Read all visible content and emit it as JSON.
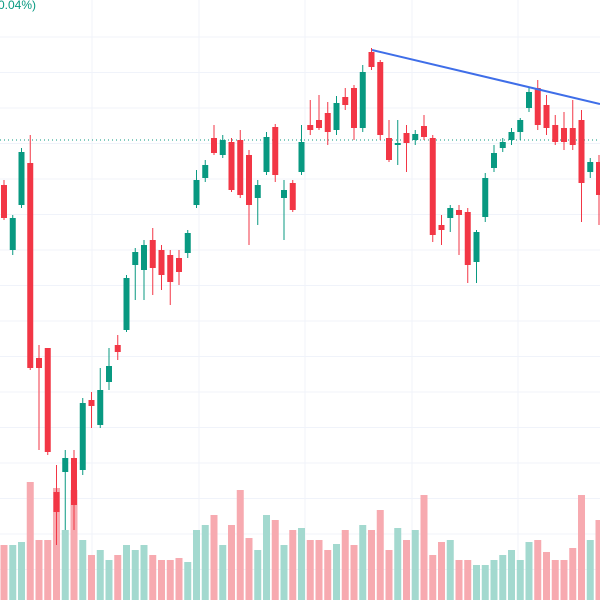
{
  "chart_data": {
    "type": "candlestick",
    "header_text": "0.04%)",
    "up_color": "#089981",
    "down_color": "#f23645",
    "volume_up_color": "#a3d9cf",
    "volume_down_color": "#f7aab0",
    "ylim": [
      0,
      600
    ],
    "y2lim": [
      0,
      600
    ],
    "grid": true,
    "open": [
      415,
      350,
      395,
      437,
      242,
      252,
      108,
      128,
      142,
      130,
      200,
      175,
      218,
      255,
      270,
      335,
      330,
      360,
      350,
      345,
      342,
      347,
      395,
      422,
      462,
      445,
      458,
      460,
      445,
      402,
      428,
      473,
      402,
      417,
      428,
      475,
      480,
      487,
      470,
      503,
      512,
      472,
      548,
      538,
      462,
      455,
      467,
      460,
      474,
      462,
      375,
      382,
      390,
      388,
      338,
      383,
      432,
      452,
      460,
      468,
      492,
      512,
      495,
      475,
      472,
      472,
      480,
      428,
      438
    ],
    "high": [
      420,
      385,
      452,
      465,
      255,
      252,
      135,
      150,
      150,
      202,
      208,
      232,
      252,
      265,
      325,
      352,
      360,
      372,
      355,
      350,
      350,
      370,
      430,
      440,
      475,
      465,
      462,
      470,
      450,
      420,
      468,
      476,
      420,
      420,
      475,
      500,
      505,
      498,
      504,
      512,
      515,
      535,
      552,
      540,
      480,
      480,
      475,
      470,
      485,
      465,
      385,
      395,
      395,
      392,
      370,
      427,
      455,
      462,
      472,
      482,
      512,
      520,
      505,
      485,
      488,
      500,
      490,
      442,
      445
    ],
    "low": [
      380,
      345,
      392,
      230,
      150,
      145,
      55,
      70,
      70,
      125,
      172,
      172,
      210,
      240,
      268,
      300,
      300,
      305,
      310,
      295,
      315,
      342,
      392,
      418,
      445,
      442,
      408,
      402,
      355,
      375,
      425,
      418,
      360,
      388,
      425,
      465,
      470,
      455,
      465,
      490,
      460,
      468,
      530,
      460,
      438,
      435,
      428,
      455,
      460,
      358,
      355,
      368,
      345,
      317,
      317,
      378,
      428,
      448,
      455,
      460,
      488,
      470,
      465,
      455,
      450,
      450,
      378,
      422,
      375
    ],
    "close": [
      382,
      382,
      448,
      232,
      232,
      148,
      88,
      142,
      95,
      197,
      194,
      210,
      234,
      248,
      322,
      348,
      355,
      332,
      325,
      318,
      328,
      367,
      420,
      435,
      447,
      460,
      410,
      405,
      395,
      415,
      463,
      425,
      410,
      390,
      458,
      470,
      472,
      468,
      497,
      495,
      472,
      528,
      533,
      465,
      440,
      457,
      457,
      466,
      463,
      365,
      370,
      392,
      385,
      335,
      368,
      422,
      447,
      458,
      468,
      480,
      508,
      475,
      472,
      458,
      458,
      455,
      417,
      438,
      405
    ],
    "volume": [
      55,
      55,
      58,
      118,
      60,
      60,
      112,
      70,
      110,
      60,
      45,
      50,
      40,
      45,
      55,
      50,
      55,
      45,
      40,
      40,
      42,
      38,
      70,
      75,
      85,
      55,
      75,
      110,
      62,
      50,
      85,
      80,
      55,
      70,
      72,
      60,
      60,
      50,
      56,
      70,
      55,
      75,
      70,
      90,
      50,
      72,
      60,
      70,
      105,
      45,
      58,
      60,
      40,
      40,
      35,
      35,
      40,
      45,
      50,
      40,
      58,
      60,
      48,
      40,
      40,
      52,
      105,
      60,
      80
    ]
  }
}
